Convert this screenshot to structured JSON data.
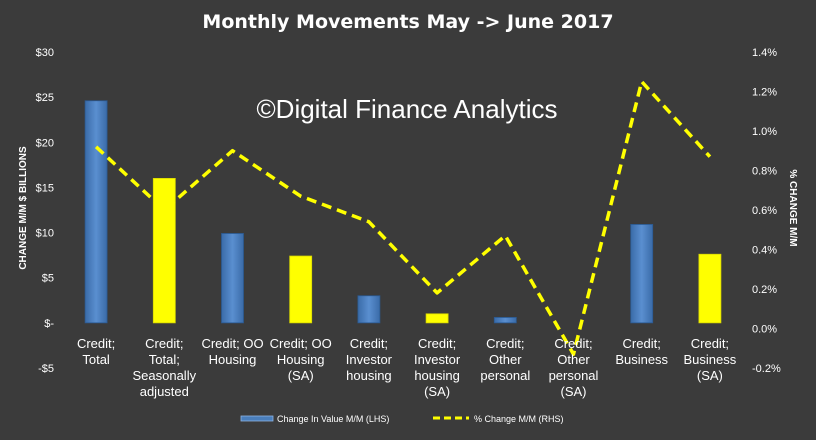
{
  "chart_data": {
    "type": "bar",
    "title": "Monthly Movements May -> June 2017",
    "watermark": "©Digital Finance Analytics",
    "categories": [
      [
        "Credit;",
        "Total"
      ],
      [
        "Credit;",
        "Total;",
        "Seasonally",
        "adjusted"
      ],
      [
        "Credit; OO",
        "Housing"
      ],
      [
        "Credit; OO",
        "Housing",
        "(SA)"
      ],
      [
        "Credit;",
        "Investor",
        "housing"
      ],
      [
        "Credit;",
        "Investor",
        "housing",
        "(SA)"
      ],
      [
        "Credit;",
        "Other",
        "personal"
      ],
      [
        "Credit;",
        "Other",
        "personal",
        "(SA)"
      ],
      [
        "Credit;",
        "Business"
      ],
      [
        "Credit;",
        "Business",
        "(SA)"
      ]
    ],
    "series": [
      {
        "name": "Change In Value M/M (LHS)",
        "type": "bar",
        "axis": "left",
        "values": [
          24.6,
          16.0,
          9.9,
          7.4,
          3.0,
          1.0,
          0.6,
          0.0,
          10.9,
          7.6
        ],
        "colors": [
          "#4a7ebb",
          "#ffff00",
          "#4a7ebb",
          "#ffff00",
          "#4a7ebb",
          "#ffff00",
          "#4a7ebb",
          "#ffff00",
          "#4a7ebb",
          "#ffff00"
        ]
      },
      {
        "name": "% Change M/M (RHS)",
        "type": "line",
        "axis": "right",
        "style": "dashed",
        "color": "#ffff00",
        "values": [
          0.92,
          0.6,
          0.9,
          0.67,
          0.54,
          0.18,
          0.47,
          -0.13,
          1.25,
          0.87
        ]
      }
    ],
    "ylabel": "CHANGE M/M $ BILLIONS",
    "y2label": "% CHANGE M/M",
    "ylim": [
      -5,
      30
    ],
    "y2lim": [
      -0.2,
      1.4
    ],
    "yticks": [
      "-$5",
      "$-",
      "$5",
      "$10",
      "$15",
      "$20",
      "$25",
      "$30"
    ],
    "y2ticks": [
      "-0.2%",
      "0.0%",
      "0.2%",
      "0.4%",
      "0.6%",
      "0.8%",
      "1.0%",
      "1.2%",
      "1.4%"
    ],
    "grid": false,
    "legend": "bottom",
    "colors": {
      "background": "#3b3b3b",
      "bar_blue": "#4a7ebb",
      "bar_yellow": "#ffff00",
      "line": "#ffff00",
      "text": "#ffffff"
    }
  }
}
